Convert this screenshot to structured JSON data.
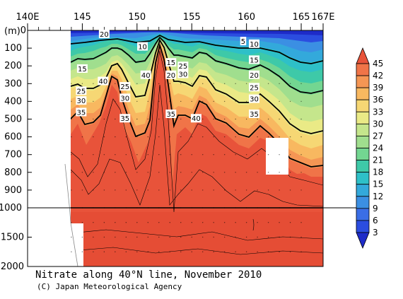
{
  "chart_data": {
    "type": "heatmap",
    "title": "Nitrate along 40°N line, November 2010",
    "credit": "(C) Japan Meteorological Agency",
    "ylabel": "(m)",
    "x_ticks": [
      "140E",
      "145",
      "150",
      "155",
      "160",
      "165",
      "167E"
    ],
    "y_ticks_upper": [
      "0",
      "100",
      "200",
      "300",
      "400",
      "500",
      "600",
      "700",
      "800",
      "900",
      "1000"
    ],
    "y_ticks_lower": [
      "1500",
      "2000"
    ],
    "xlim": [
      140,
      167
    ],
    "ylim": [
      0,
      2000
    ],
    "colorbar": {
      "levels": [
        "45",
        "42",
        "39",
        "36",
        "33",
        "30",
        "27",
        "24",
        "21",
        "18",
        "15",
        "12",
        "9",
        "6",
        "3"
      ],
      "colors": [
        "#e8533a",
        "#f07448",
        "#f59654",
        "#f8b860",
        "#f6d774",
        "#eaea86",
        "#c5e68c",
        "#a0de8e",
        "#73d691",
        "#3ec9a8",
        "#2ec0c8",
        "#33a9db",
        "#3b8fe3",
        "#3a6ee6",
        "#2b4de0",
        "#1e2bc8"
      ]
    },
    "contour_labels": [
      {
        "value": "20",
        "lon": 147.0,
        "depth": 20
      },
      {
        "value": "10",
        "lon": 150.5,
        "depth": 90
      },
      {
        "value": "5",
        "lon": 159.7,
        "depth": 60
      },
      {
        "value": "10",
        "lon": 160.7,
        "depth": 75
      },
      {
        "value": "15",
        "lon": 145.0,
        "depth": 215
      },
      {
        "value": "40",
        "lon": 150.8,
        "depth": 250
      },
      {
        "value": "15",
        "lon": 153.1,
        "depth": 180
      },
      {
        "value": "25",
        "lon": 154.2,
        "depth": 200
      },
      {
        "value": "20",
        "lon": 153.1,
        "depth": 250
      },
      {
        "value": "30",
        "lon": 154.2,
        "depth": 245
      },
      {
        "value": "15",
        "lon": 160.7,
        "depth": 165
      },
      {
        "value": "40",
        "lon": 146.9,
        "depth": 285
      },
      {
        "value": "20",
        "lon": 160.7,
        "depth": 250
      },
      {
        "value": "25",
        "lon": 148.9,
        "depth": 315
      },
      {
        "value": "25",
        "lon": 144.9,
        "depth": 340
      },
      {
        "value": "30",
        "lon": 144.9,
        "depth": 395
      },
      {
        "value": "30",
        "lon": 148.9,
        "depth": 380
      },
      {
        "value": "25",
        "lon": 160.7,
        "depth": 320
      },
      {
        "value": "30",
        "lon": 160.7,
        "depth": 385
      },
      {
        "value": "35",
        "lon": 144.9,
        "depth": 460
      },
      {
        "value": "35",
        "lon": 153.1,
        "depth": 470
      },
      {
        "value": "35",
        "lon": 148.9,
        "depth": 495
      },
      {
        "value": "40",
        "lon": 155.4,
        "depth": 495
      },
      {
        "value": "35",
        "lon": 160.7,
        "depth": 470
      }
    ]
  }
}
